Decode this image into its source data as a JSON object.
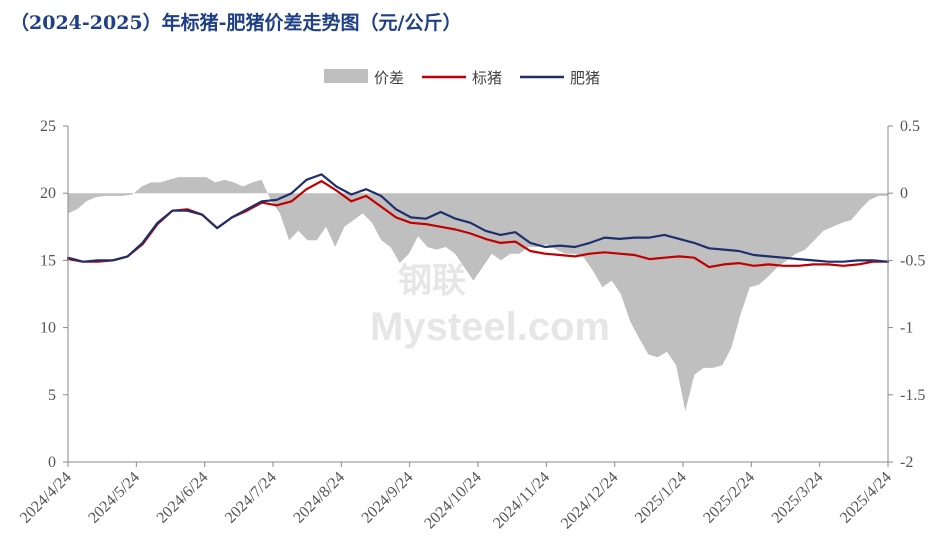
{
  "title": "（2024-2025）年标猪-肥猪价差走势图（元/公斤）",
  "watermark": {
    "line1": "钢联",
    "line2": "Mysteel.com"
  },
  "chart_data": {
    "type": "line",
    "title": "（2024-2025）年标猪-肥猪价差走势图（元/公斤）",
    "left_axis": {
      "ticks": [
        0,
        5,
        10,
        15,
        20,
        25
      ],
      "ylim": [
        0,
        25
      ]
    },
    "right_axis": {
      "ticks": [
        "-2",
        "-1.5",
        "-1",
        "-0.5",
        "0",
        "0.5"
      ],
      "ylim": [
        -2,
        0.5
      ]
    },
    "x_tick_labels": [
      "2024/4/24",
      "2024/5/24",
      "2024/6/24",
      "2024/7/24",
      "2024/8/24",
      "2024/9/24",
      "2024/10/24",
      "2024/11/24",
      "2024/12/24",
      "2025/1/24",
      "2025/2/24",
      "2025/3/24",
      "2025/4/24"
    ],
    "legend": {
      "placement": "top-center"
    },
    "series": [
      {
        "name": "价差",
        "kind": "area",
        "axis": "right",
        "color": "#bfbfbf",
        "values": [
          -0.15,
          -0.12,
          -0.06,
          -0.03,
          -0.02,
          -0.02,
          -0.02,
          -0.01,
          0.05,
          0.08,
          0.08,
          0.1,
          0.12,
          0.12,
          0.12,
          0.12,
          0.08,
          0.1,
          0.08,
          0.05,
          0.08,
          0.1,
          -0.05,
          -0.15,
          -0.35,
          -0.28,
          -0.35,
          -0.35,
          -0.25,
          -0.4,
          -0.25,
          -0.2,
          -0.15,
          -0.22,
          -0.35,
          -0.4,
          -0.52,
          -0.45,
          -0.32,
          -0.4,
          -0.42,
          -0.4,
          -0.45,
          -0.55,
          -0.65,
          -0.55,
          -0.45,
          -0.5,
          -0.45,
          -0.45,
          -0.4,
          -0.4,
          -0.38,
          -0.42,
          -0.45,
          -0.45,
          -0.48,
          -0.58,
          -0.7,
          -0.65,
          -0.75,
          -0.95,
          -1.08,
          -1.2,
          -1.22,
          -1.18,
          -1.28,
          -1.62,
          -1.35,
          -1.3,
          -1.3,
          -1.28,
          -1.15,
          -0.9,
          -0.7,
          -0.68,
          -0.62,
          -0.55,
          -0.5,
          -0.45,
          -0.42,
          -0.35,
          -0.28,
          -0.25,
          -0.22,
          -0.2,
          -0.12,
          -0.05,
          -0.02,
          -0.02
        ]
      },
      {
        "name": "标猪",
        "kind": "line",
        "axis": "left",
        "color": "#c00000",
        "values": [
          15.1,
          14.9,
          14.9,
          15.0,
          15.3,
          16.2,
          17.7,
          18.7,
          18.8,
          18.4,
          17.4,
          18.2,
          18.7,
          19.3,
          19.1,
          19.4,
          20.3,
          20.9,
          20.2,
          19.4,
          19.8,
          19.0,
          18.2,
          17.8,
          17.7,
          17.5,
          17.3,
          17.0,
          16.6,
          16.3,
          16.4,
          15.7,
          15.5,
          15.4,
          15.3,
          15.5,
          15.6,
          15.5,
          15.4,
          15.1,
          15.2,
          15.3,
          15.2,
          14.5,
          14.7,
          14.8,
          14.6,
          14.7,
          14.6,
          14.6,
          14.7,
          14.7,
          14.6,
          14.7,
          14.9,
          14.9
        ]
      },
      {
        "name": "肥猪",
        "kind": "line",
        "axis": "left",
        "color": "#1f2f6e",
        "values": [
          15.2,
          14.9,
          15.0,
          15.0,
          15.3,
          16.3,
          17.8,
          18.7,
          18.7,
          18.4,
          17.4,
          18.2,
          18.8,
          19.4,
          19.5,
          20.0,
          21.0,
          21.4,
          20.5,
          19.9,
          20.3,
          19.8,
          18.8,
          18.2,
          18.1,
          18.6,
          18.1,
          17.8,
          17.2,
          16.9,
          17.1,
          16.3,
          16.0,
          16.1,
          16.0,
          16.3,
          16.7,
          16.6,
          16.7,
          16.7,
          16.9,
          16.6,
          16.3,
          15.9,
          15.8,
          15.7,
          15.4,
          15.3,
          15.2,
          15.1,
          15.0,
          14.9,
          14.9,
          15.0,
          15.0,
          14.9
        ]
      }
    ]
  }
}
